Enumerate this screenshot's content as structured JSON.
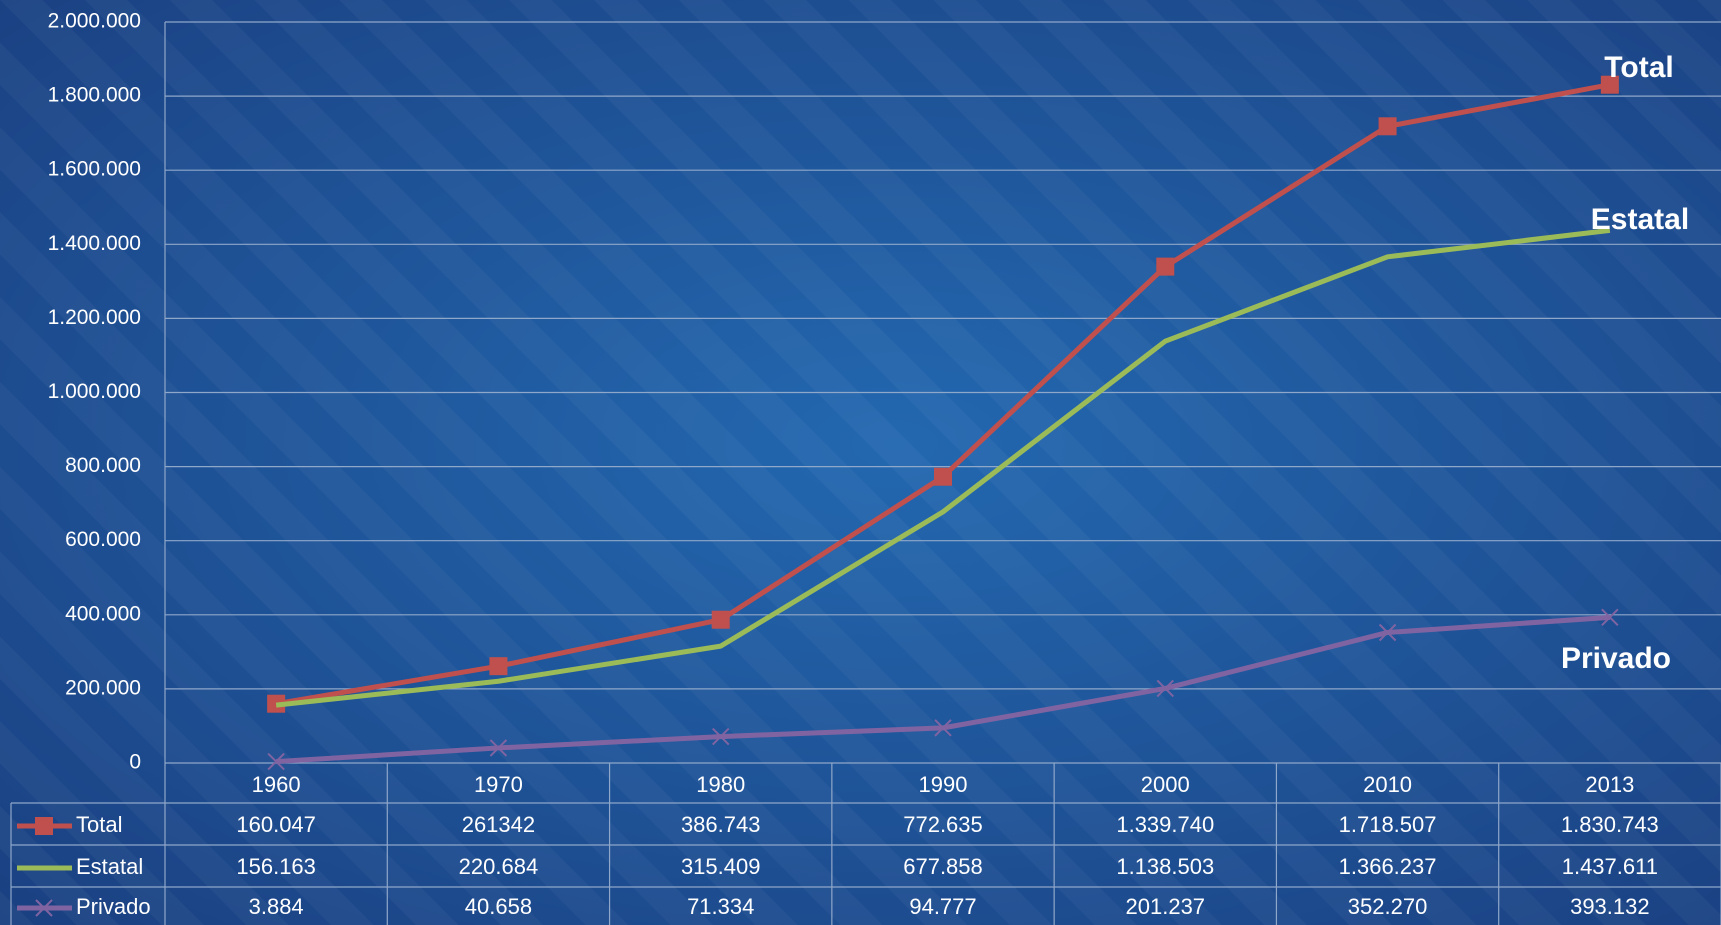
{
  "chart_data": {
    "type": "line",
    "categories": [
      "1960",
      "1970",
      "1980",
      "1990",
      "2000",
      "2010",
      "2013"
    ],
    "series": [
      {
        "name": "Total",
        "color": "#c0504d",
        "marker": "square",
        "values": [
          160047,
          261342,
          386743,
          772635,
          1339740,
          1718507,
          1830743
        ],
        "value_labels": [
          "160.047",
          "261342",
          "386.743",
          "772.635",
          "1.339.740",
          "1.718.507",
          "1.830.743"
        ]
      },
      {
        "name": "Estatal",
        "color": "#9bbb59",
        "marker": "none",
        "values": [
          156163,
          220684,
          315409,
          677858,
          1138503,
          1366237,
          1437611
        ],
        "value_labels": [
          "156.163",
          "220.684",
          "315.409",
          "677.858",
          "1.138.503",
          "1.366.237",
          "1.437.611"
        ]
      },
      {
        "name": "Privado",
        "color": "#8064a2",
        "marker": "x",
        "values": [
          3884,
          40658,
          71334,
          94777,
          201237,
          352270,
          393132
        ],
        "value_labels": [
          "3.884",
          "40.658",
          "71.334",
          "94.777",
          "201.237",
          "352.270",
          "393.132"
        ]
      }
    ],
    "ylim": [
      0,
      2000000
    ],
    "yticks": [
      0,
      {
        "value": 200000,
        "label": "200.000"
      },
      {
        "value": 400000,
        "label": "400.000"
      },
      {
        "value": 600000,
        "label": "600.000"
      },
      {
        "value": 800000,
        "label": "800.000"
      },
      {
        "value": 1000000,
        "label": "1.000.000"
      },
      {
        "value": 1200000,
        "label": "1.200.000"
      },
      {
        "value": 1400000,
        "label": "1.400.000"
      },
      {
        "value": 1600000,
        "label": "1.600.000"
      },
      {
        "value": 1800000,
        "label": "1.800.000"
      },
      {
        "value": 2000000,
        "label": "2.000.000"
      }
    ],
    "grid": true,
    "data_table": true
  }
}
